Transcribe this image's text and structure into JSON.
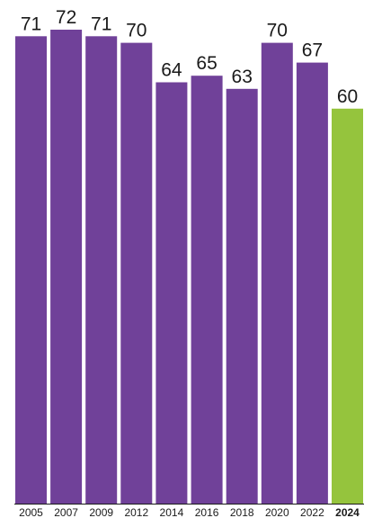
{
  "chart_data": {
    "type": "bar",
    "categories": [
      "2005",
      "2007",
      "2009",
      "2012",
      "2014",
      "2016",
      "2018",
      "2020",
      "2022",
      "2024"
    ],
    "values": [
      71,
      72,
      71,
      70,
      64,
      65,
      63,
      70,
      67,
      60
    ],
    "highlight_category": "2024",
    "ylim": [
      0,
      75
    ],
    "grid": false,
    "legend": "none",
    "colors": {
      "default_bar": "#704199",
      "highlight_bar": "#95c43d",
      "baseline": "#1a1a1a"
    }
  }
}
